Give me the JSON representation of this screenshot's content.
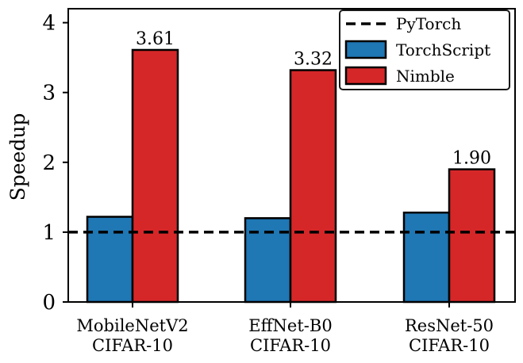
{
  "chart_data": {
    "type": "bar",
    "categories": [
      [
        "MobileNetV2",
        "CIFAR-10"
      ],
      [
        "EffNet-B0",
        "CIFAR-10"
      ],
      [
        "ResNet-50",
        "CIFAR-10"
      ]
    ],
    "series": [
      {
        "name": "TorchScript",
        "color": "#1f77b4",
        "values": [
          1.22,
          1.2,
          1.28
        ]
      },
      {
        "name": "Nimble",
        "color": "#d62728",
        "values": [
          3.61,
          3.32,
          1.9
        ]
      }
    ],
    "data_labels": {
      "series": "Nimble",
      "labels": [
        "3.61",
        "3.32",
        "1.90"
      ]
    },
    "reference_line": {
      "name": "PyTorch",
      "value": 1,
      "style": "dashed",
      "color": "#000000"
    },
    "ylabel": "Speedup",
    "xlabel": "",
    "ylim": [
      0,
      4.2
    ],
    "yticks": [
      0,
      1,
      2,
      3,
      4
    ],
    "grid": false,
    "legend": {
      "placement": "top-right",
      "entries": [
        "PyTorch",
        "TorchScript",
        "Nimble"
      ]
    }
  }
}
